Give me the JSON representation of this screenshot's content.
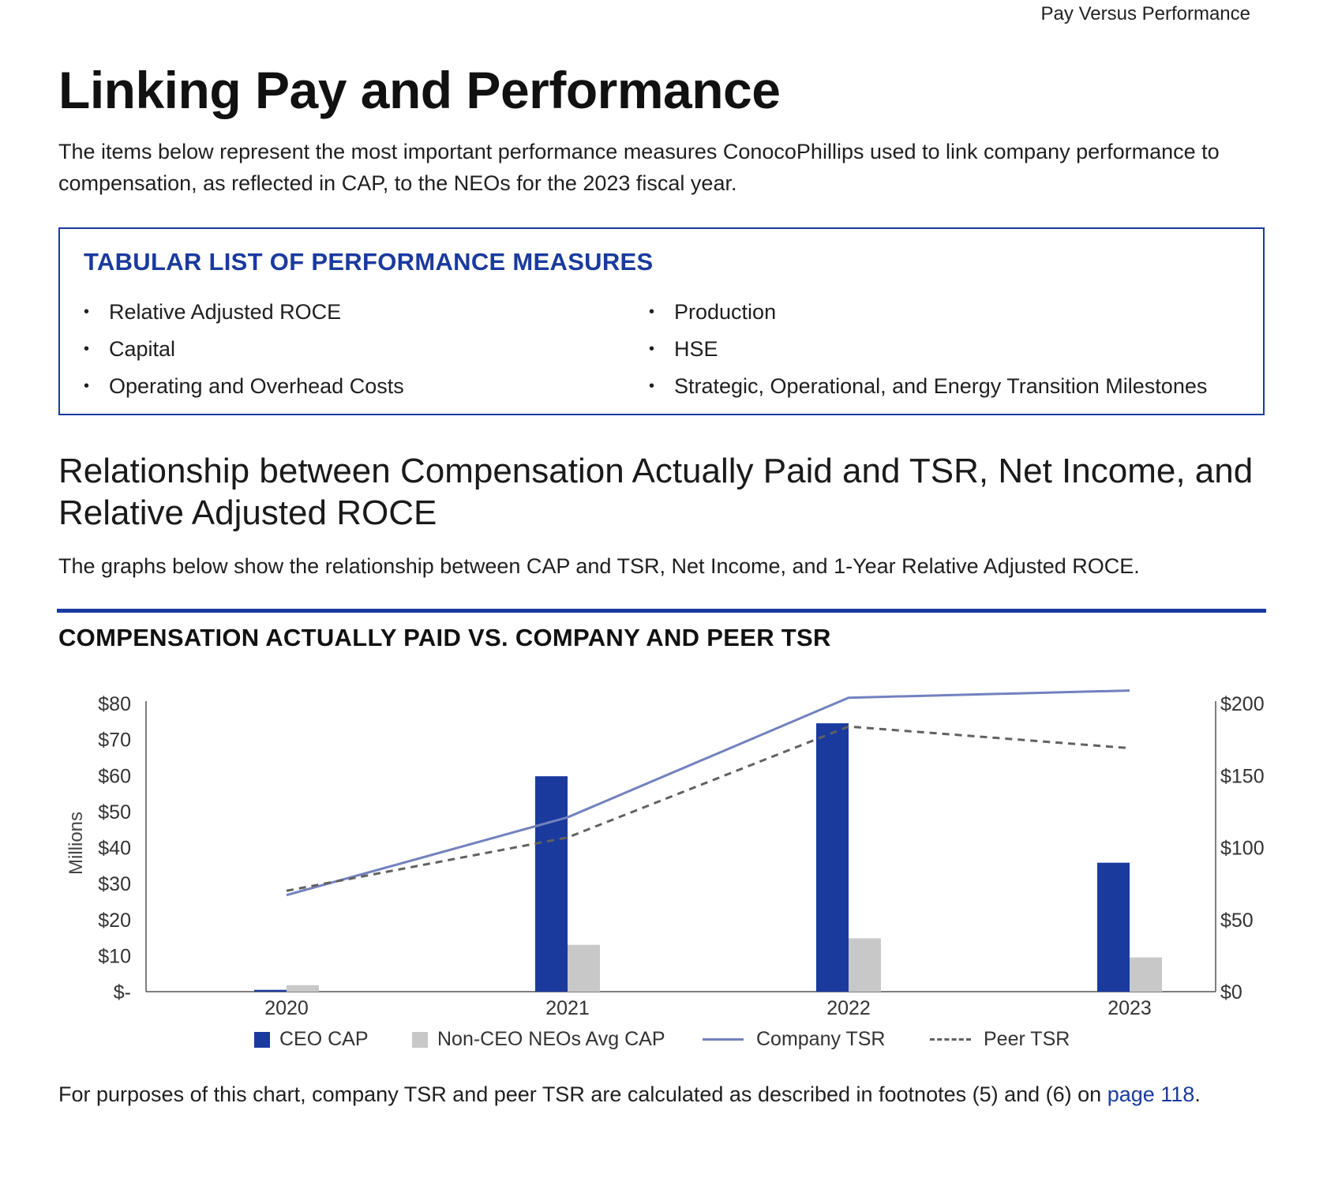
{
  "running_head": "Pay Versus Performance",
  "title": "Linking Pay and Performance",
  "intro": "The items below represent the most important performance measures ConocoPhillips used to link company performance to compensation, as reflected in CAP, to the NEOs for the 2023 fiscal year.",
  "measures": {
    "heading": "TABULAR LIST OF PERFORMANCE MEASURES",
    "left": [
      "Relative Adjusted ROCE",
      "Capital",
      "Operating and Overhead Costs"
    ],
    "right": [
      "Production",
      "HSE",
      "Strategic, Operational, and Energy Transition Milestones"
    ]
  },
  "section": {
    "title": "Relationship between Compensation Actually Paid and TSR, Net Income, and Relative Adjusted ROCE",
    "text": "The graphs below show the relationship between CAP and TSR, Net Income, and 1-Year Relative Adjusted ROCE."
  },
  "chart_title": "COMPENSATION ACTUALLY PAID VS. COMPANY AND PEER TSR",
  "chart_data": {
    "type": "bar",
    "categories": [
      "2020",
      "2021",
      "2022",
      "2023"
    ],
    "series": [
      {
        "name": "CEO CAP",
        "type": "bar",
        "axis": "left",
        "values": [
          0.5,
          59.8,
          74.5,
          35.8
        ]
      },
      {
        "name": "Non-CEO NEOs Avg CAP",
        "type": "bar",
        "axis": "left",
        "values": [
          1.8,
          13.0,
          14.8,
          9.5
        ]
      },
      {
        "name": "Company TSR",
        "type": "line",
        "axis": "right",
        "values": [
          67,
          121,
          204,
          209
        ]
      },
      {
        "name": "Peer TSR",
        "type": "line",
        "axis": "right",
        "values": [
          70,
          107,
          184,
          169
        ]
      }
    ],
    "ylabel": "Millions",
    "ylim": [
      0,
      80
    ],
    "y_ticks": [
      0,
      10,
      20,
      30,
      40,
      50,
      60,
      70,
      80
    ],
    "y_tick_labels": [
      "$-",
      "$10",
      "$20",
      "$30",
      "$40",
      "$50",
      "$60",
      "$70",
      "$80"
    ],
    "y2lim": [
      0,
      200
    ],
    "y2_ticks": [
      0,
      50,
      100,
      150,
      200
    ],
    "y2_tick_labels": [
      "$0",
      "$50",
      "$100",
      "$150",
      "$200"
    ],
    "grid": false,
    "legend": "bottom",
    "colors": {
      "ceo": "#1a3a9e",
      "neo": "#c8c8c8",
      "company": "#7381bf",
      "peer": "#616161"
    }
  },
  "footnote": {
    "text": "For purposes of this chart, company TSR and peer TSR are calculated as described in footnotes (5) and (6) on ",
    "link": "page 118",
    "end": "."
  }
}
